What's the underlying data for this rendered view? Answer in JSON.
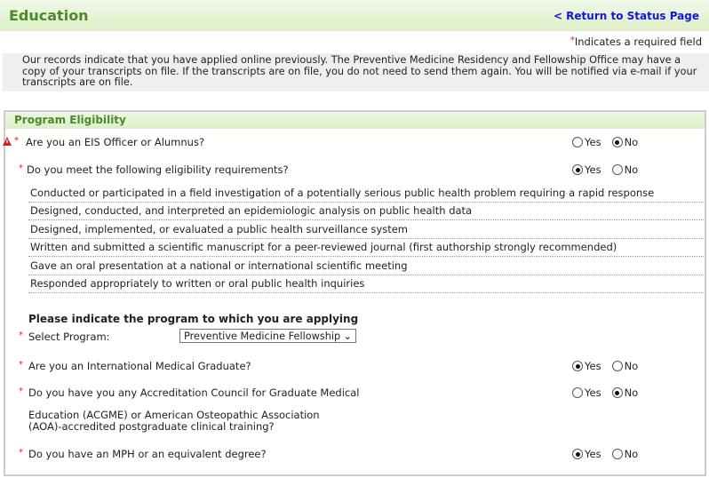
{
  "header": {
    "title": "Education",
    "return_link": "< Return to Status Page"
  },
  "required_note": "Indicates a required field",
  "notice": "Our records indicate that you have applied online previously. The Preventive Medicine Residency and Fellowship Office may have a copy of your transcripts on file. If the transcripts are on file, you do not need to send them again. You will be notified via e-mail if your transcripts are on file.",
  "panel": {
    "title": "Program Eligibility",
    "q_eis": {
      "label": "Are you an EIS Officer or Alumnus?",
      "yes": "Yes",
      "no": "No",
      "selected": "No"
    },
    "q_elig": {
      "label": "Do you meet the following eligibility requirements?",
      "yes": "Yes",
      "no": "No",
      "selected": "Yes"
    },
    "requirements": [
      "Conducted or participated in a field investigation of a potentially serious public health problem requiring a rapid response",
      "Designed, conducted, and interpreted an epidemiologic analysis on public health data",
      "Designed, implemented, or evaluated a public health surveillance system",
      "Written and submitted a scientific manuscript for a peer-reviewed journal (first authorship strongly recommended)",
      "Gave an oral presentation at a national or international scientific meeting",
      "Responded appropriately to written or oral public health inquiries"
    ],
    "program_heading": "Please indicate the program to which you are applying",
    "select_label": "Select Program:",
    "select_value": "Preventive Medicine Fellowship",
    "q_img": {
      "label": "Are you an International Medical Graduate?",
      "yes": "Yes",
      "no": "No",
      "selected": "Yes"
    },
    "q_acgme": {
      "label": "Do you have you any Accreditation Council for Graduate Medical",
      "label2": "Education (ACGME) or American Osteopathic Association",
      "label3": "(AOA)-accredited postgraduate clinical training?",
      "yes": "Yes",
      "no": "No",
      "selected": "No"
    },
    "q_mph": {
      "label": "Do you have an MPH or an equivalent degree?",
      "yes": "Yes",
      "no": "No",
      "selected": "Yes"
    }
  },
  "colors": {
    "accent_green": "#4a8a2a",
    "link": "#1515e0",
    "required": "#d22"
  }
}
